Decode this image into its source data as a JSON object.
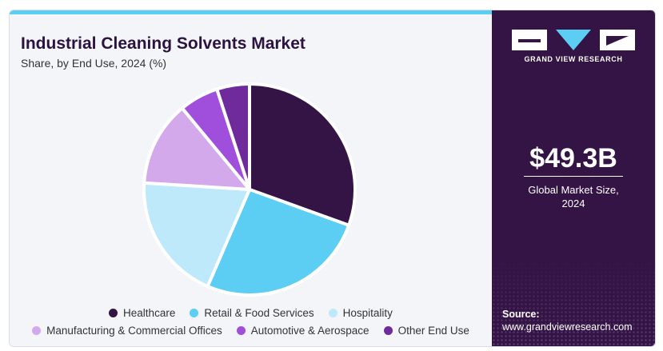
{
  "header": {
    "title": "Industrial Cleaning Solvents Market",
    "subtitle": "Share, by End Use, 2024 (%)"
  },
  "brand": {
    "name": "GRAND VIEW RESEARCH",
    "logo_icon": "gvr-logo-icon"
  },
  "market": {
    "value": "$49.3B",
    "label_line1": "Global Market Size,",
    "label_line2": "2024"
  },
  "source": {
    "label": "Source:",
    "url": "www.grandviewresearch.com"
  },
  "colors": {
    "accent_bar": "#5ccdf3",
    "panel_bg": "#341445",
    "title": "#2b1240"
  },
  "chart_data": {
    "type": "pie",
    "title": "Industrial Cleaning Solvents Market",
    "subtitle": "Share, by End Use, 2024 (%)",
    "legend_position": "bottom",
    "categories": [
      "Healthcare",
      "Retail & Food Services",
      "Hospitality",
      "Manufacturing & Commercial Offices",
      "Automotive & Aerospace",
      "Other End Use"
    ],
    "values": [
      30.5,
      26.0,
      19.5,
      13.0,
      6.0,
      5.0
    ],
    "colors": [
      "#341445",
      "#5ccdf3",
      "#bde9fa",
      "#d3a9ec",
      "#a04fdc",
      "#6f2a9c"
    ]
  }
}
